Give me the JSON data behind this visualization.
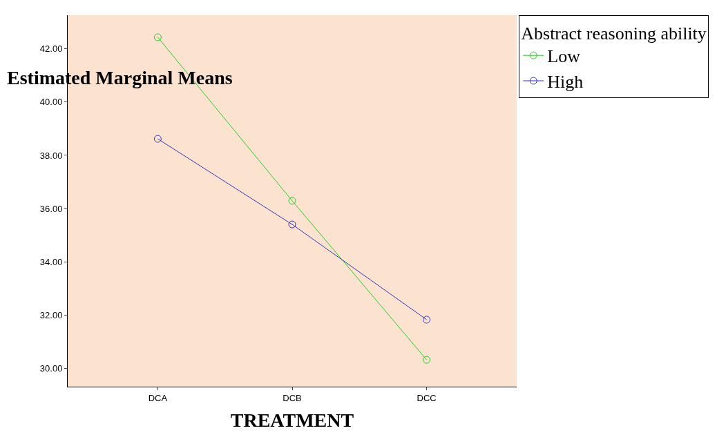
{
  "chart_data": {
    "type": "line",
    "title": "Estimated Marginal Means",
    "xlabel": "TREATMENT",
    "legend_title": "Abstract reasoning ability",
    "categories": [
      "DCA",
      "DCB",
      "DCC"
    ],
    "series": [
      {
        "name": "Low",
        "color": "#22cc22",
        "values": [
          42.44,
          36.29,
          30.31
        ]
      },
      {
        "name": "High",
        "color": "#3333bb",
        "values": [
          38.62,
          35.4,
          31.82
        ]
      }
    ],
    "ylim": [
      29.3,
      43.27
    ],
    "yticks": [
      {
        "value": 30,
        "label": "30.00"
      },
      {
        "value": 32,
        "label": "32.00"
      },
      {
        "value": 34,
        "label": "34.00"
      },
      {
        "value": 36,
        "label": "36.00"
      },
      {
        "value": 38,
        "label": "38.00"
      },
      {
        "value": 40,
        "label": "40.00"
      },
      {
        "value": 42,
        "label": "42.00"
      }
    ],
    "marker": "circle",
    "line_style": "solid",
    "grid": false,
    "legend": "top right"
  }
}
